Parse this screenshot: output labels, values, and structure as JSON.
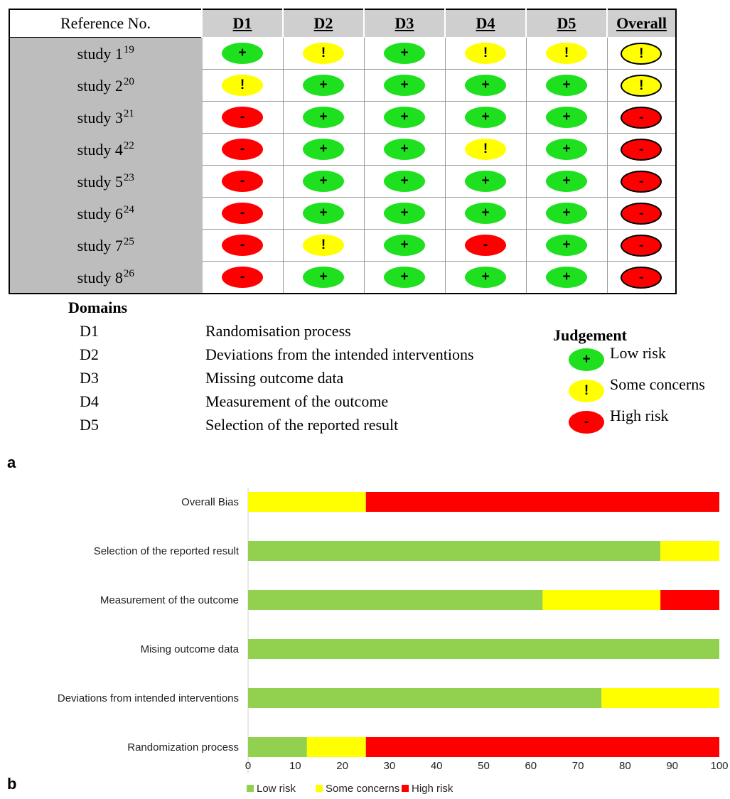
{
  "table": {
    "header": {
      "reference": "Reference No.",
      "domains": [
        "D1",
        "D2",
        "D3",
        "D4",
        "D5"
      ],
      "overall": "Overall"
    },
    "rows": [
      {
        "study": "study 1",
        "ref": "19",
        "d": [
          "low",
          "some",
          "low",
          "some",
          "some"
        ],
        "overall": "some"
      },
      {
        "study": "study 2",
        "ref": "20",
        "d": [
          "some",
          "low",
          "low",
          "low",
          "low"
        ],
        "overall": "some"
      },
      {
        "study": "study 3",
        "ref": "21",
        "d": [
          "high",
          "low",
          "low",
          "low",
          "low"
        ],
        "overall": "high"
      },
      {
        "study": "study 4",
        "ref": "22",
        "d": [
          "high",
          "low",
          "low",
          "some",
          "low"
        ],
        "overall": "high"
      },
      {
        "study": "study 5",
        "ref": "23",
        "d": [
          "high",
          "low",
          "low",
          "low",
          "low"
        ],
        "overall": "high"
      },
      {
        "study": "study 6",
        "ref": "24",
        "d": [
          "high",
          "low",
          "low",
          "low",
          "low"
        ],
        "overall": "high"
      },
      {
        "study": "study 7",
        "ref": "25",
        "d": [
          "high",
          "some",
          "low",
          "high",
          "low"
        ],
        "overall": "high"
      },
      {
        "study": "study 8",
        "ref": "26",
        "d": [
          "high",
          "low",
          "low",
          "low",
          "low"
        ],
        "overall": "high"
      }
    ],
    "symbols": {
      "low": "+",
      "some": "!",
      "high": "-"
    },
    "colors": {
      "low": "#1fe01f",
      "some": "#ffff00",
      "high": "#ff0000"
    }
  },
  "domains_legend": {
    "title": "Domains",
    "items": [
      {
        "code": "D1",
        "text": "Randomisation process"
      },
      {
        "code": "D2",
        "text": "Deviations from the intended interventions"
      },
      {
        "code": "D3",
        "text": "Missing outcome data"
      },
      {
        "code": "D4",
        "text": "Measurement of the outcome"
      },
      {
        "code": "D5",
        "text": "Selection of the reported result"
      }
    ]
  },
  "judgement_legend": {
    "title": "Judgement",
    "items": [
      {
        "key": "low",
        "symbol": "+",
        "text": "Low risk"
      },
      {
        "key": "some",
        "symbol": "!",
        "text": "Some concerns"
      },
      {
        "key": "high",
        "symbol": "-",
        "text": "High risk"
      }
    ]
  },
  "panel_labels": {
    "a": "a",
    "b": "b"
  },
  "chart_data": {
    "type": "bar",
    "orientation": "horizontal",
    "stacked": true,
    "categories": [
      "Overall Bias",
      "Selection of the reported result",
      "Measurement of the outcome",
      "Mising outcome data",
      "Deviations from intended interventions",
      "Randomization process"
    ],
    "series": [
      {
        "name": "Low risk",
        "color": "#92d050",
        "values": [
          0,
          87.5,
          62.5,
          100,
          75,
          12.5
        ]
      },
      {
        "name": "Some concerns",
        "color": "#ffff00",
        "values": [
          25,
          12.5,
          25,
          0,
          25,
          12.5
        ]
      },
      {
        "name": "High risk",
        "color": "#ff0000",
        "values": [
          75,
          0,
          12.5,
          0,
          0,
          75
        ]
      }
    ],
    "xlim": [
      0,
      100
    ],
    "xticks": [
      0,
      10,
      20,
      30,
      40,
      50,
      60,
      70,
      80,
      90,
      100
    ],
    "grid": false,
    "legend_position": "bottom"
  }
}
